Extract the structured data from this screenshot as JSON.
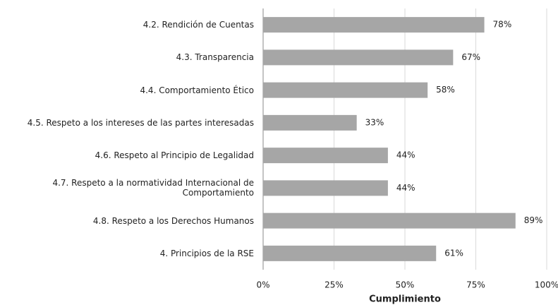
{
  "chart_data": {
    "type": "barh",
    "categories": [
      "4.2. Rendición de Cuentas",
      "4.3. Transparencia",
      "4.4. Comportamiento Ético",
      "4.5. Respeto a los intereses de las partes interesadas",
      "4.6. Respeto al Principio de Legalidad",
      "4.7. Respeto a la normatividad Internacional de Comportamiento",
      "4.8. Respeto a los Derechos Humanos",
      "4. Principios de la RSE"
    ],
    "values": [
      78,
      67,
      58,
      33,
      44,
      44,
      89,
      61
    ],
    "value_labels": [
      "78%",
      "67%",
      "58%",
      "33%",
      "44%",
      "44%",
      "89%",
      "61%"
    ],
    "color": "#a6a6a6",
    "xlim": [
      0,
      100
    ],
    "xticks": [
      {
        "value": 0,
        "label": "0%"
      },
      {
        "value": 25,
        "label": "25%"
      },
      {
        "value": 50,
        "label": "50%"
      },
      {
        "value": 75,
        "label": "75%"
      },
      {
        "value": 100,
        "label": "100%"
      }
    ],
    "xlabel": "Cumplimiento",
    "grid": true
  }
}
